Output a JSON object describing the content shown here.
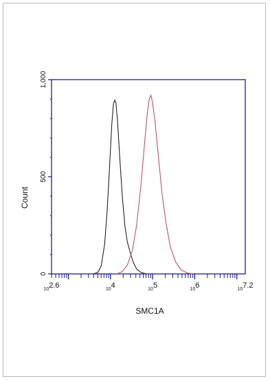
{
  "chart_data": {
    "type": "line",
    "title": "",
    "xlabel": "SMC1A",
    "ylabel": "Count",
    "x_scale": "log",
    "xlim": [
      2.6,
      7.2
    ],
    "ylim": [
      0,
      1000
    ],
    "x_tick_labels": [
      {
        "base": "10",
        "exp": "2.6"
      },
      {
        "base": "10",
        "exp": "4"
      },
      {
        "base": "10",
        "exp": "5"
      },
      {
        "base": "10",
        "exp": "6"
      },
      {
        "base": "10",
        "exp": "7.2"
      }
    ],
    "y_tick_labels": [
      "0",
      "500",
      "1,000"
    ],
    "axis_color": "#1b1b8f",
    "series": [
      {
        "color": "#222222",
        "points": [
          [
            3.6,
            0
          ],
          [
            3.7,
            8
          ],
          [
            3.78,
            40
          ],
          [
            3.86,
            150
          ],
          [
            3.92,
            320
          ],
          [
            3.98,
            560
          ],
          [
            4.03,
            770
          ],
          [
            4.07,
            875
          ],
          [
            4.1,
            895
          ],
          [
            4.13,
            880
          ],
          [
            4.17,
            780
          ],
          [
            4.22,
            600
          ],
          [
            4.28,
            400
          ],
          [
            4.34,
            250
          ],
          [
            4.4,
            165
          ],
          [
            4.47,
            110
          ],
          [
            4.54,
            60
          ],
          [
            4.62,
            25
          ],
          [
            4.72,
            8
          ],
          [
            4.85,
            0
          ]
        ]
      },
      {
        "color": "#c0506a",
        "points": [
          [
            4.15,
            0
          ],
          [
            4.28,
            12
          ],
          [
            4.4,
            45
          ],
          [
            4.52,
            120
          ],
          [
            4.62,
            250
          ],
          [
            4.72,
            450
          ],
          [
            4.8,
            650
          ],
          [
            4.87,
            820
          ],
          [
            4.92,
            900
          ],
          [
            4.96,
            920
          ],
          [
            5.0,
            880
          ],
          [
            5.06,
            780
          ],
          [
            5.14,
            600
          ],
          [
            5.22,
            420
          ],
          [
            5.32,
            260
          ],
          [
            5.42,
            140
          ],
          [
            5.55,
            60
          ],
          [
            5.68,
            20
          ],
          [
            5.82,
            5
          ],
          [
            5.95,
            0
          ]
        ]
      }
    ]
  }
}
